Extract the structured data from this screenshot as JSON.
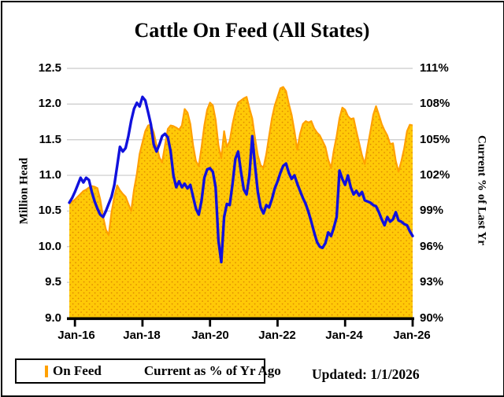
{
  "title": "Cattle On Feed (All States)",
  "updated_label": "Updated: 1/1/2026",
  "legend": {
    "on_feed_label": "On Feed",
    "pct_label": "Current as % of Yr Ago"
  },
  "colors": {
    "area_fill": "#FFC907",
    "area_dots": "#E08A00",
    "area_border": "#FFA000",
    "pct_line": "#1111DD",
    "gridline": "#C9C9C9",
    "axis": "#000000"
  },
  "chart_data": {
    "type": "area+line (dual axis, monthly)",
    "x_start": "2015-11",
    "x_end": "2026-01",
    "x_interval": "monthly",
    "x_tick_labels": [
      "Jan-16",
      "Jan-18",
      "Jan-20",
      "Jan-22",
      "Jan-24",
      "Jan-26"
    ],
    "x_tick_month_index": [
      2,
      26,
      50,
      74,
      98,
      122
    ],
    "left_axis": {
      "title": "Million Head",
      "min": 9.0,
      "max": 12.5,
      "ticks": [
        "12.5",
        "12.0",
        "11.5",
        "11.0",
        "10.5",
        "10.0",
        "9.5",
        "9.0"
      ]
    },
    "right_axis": {
      "title": "Current % of Last Yr",
      "min": 90,
      "max": 111,
      "ticks": [
        "111%",
        "108%",
        "105%",
        "102%",
        "99%",
        "96%",
        "93%",
        "90%"
      ]
    },
    "grid": "horizontal only",
    "legend_position": "bottom-left box",
    "series": [
      {
        "name": "On Feed",
        "axis": "left",
        "type": "area",
        "values": [
          10.6,
          10.63,
          10.66,
          10.7,
          10.74,
          10.78,
          10.8,
          10.83,
          10.85,
          10.84,
          10.82,
          10.66,
          10.42,
          10.24,
          10.16,
          10.48,
          10.7,
          10.86,
          10.79,
          10.74,
          10.7,
          10.6,
          10.5,
          10.8,
          11.02,
          11.3,
          11.46,
          11.62,
          11.7,
          11.71,
          11.6,
          11.42,
          11.25,
          11.18,
          11.42,
          11.65,
          11.7,
          11.69,
          11.67,
          11.64,
          11.7,
          11.93,
          11.88,
          11.72,
          11.42,
          11.2,
          11.13,
          11.4,
          11.7,
          11.92,
          12.02,
          11.98,
          11.78,
          11.42,
          11.24,
          11.62,
          11.4,
          11.48,
          11.72,
          11.9,
          12.02,
          12.05,
          12.08,
          12.1,
          11.94,
          11.8,
          11.52,
          11.28,
          11.14,
          11.11,
          11.3,
          11.55,
          11.8,
          11.98,
          12.1,
          12.22,
          12.24,
          12.18,
          12.0,
          11.85,
          11.62,
          11.36,
          11.58,
          11.72,
          11.76,
          11.74,
          11.76,
          11.66,
          11.6,
          11.56,
          11.48,
          11.4,
          11.22,
          11.1,
          11.35,
          11.55,
          11.8,
          11.95,
          11.92,
          11.83,
          11.79,
          11.8,
          11.62,
          11.45,
          11.28,
          11.16,
          11.4,
          11.62,
          11.85,
          11.97,
          11.85,
          11.72,
          11.63,
          11.56,
          11.44,
          11.45,
          11.2,
          11.05,
          11.2,
          11.38,
          11.62,
          11.71,
          11.7
        ]
      },
      {
        "name": "Current as % of Yr Ago",
        "axis": "right",
        "type": "line",
        "values": [
          99.7,
          100.1,
          100.6,
          101.2,
          101.8,
          101.4,
          101.8,
          101.6,
          100.6,
          99.8,
          99.2,
          98.7,
          98.5,
          99.0,
          99.6,
          100.2,
          101.2,
          102.8,
          104.4,
          104.0,
          104.3,
          105.3,
          106.6,
          107.6,
          108.1,
          107.8,
          108.6,
          108.3,
          107.3,
          106.3,
          104.6,
          104.0,
          104.6,
          105.3,
          105.5,
          105.2,
          104.0,
          102.0,
          101.0,
          101.5,
          101.0,
          101.3,
          100.9,
          101.2,
          100.2,
          99.2,
          98.7,
          99.9,
          101.8,
          102.5,
          102.6,
          102.3,
          101.0,
          96.5,
          94.7,
          98.5,
          99.6,
          99.5,
          101.3,
          103.4,
          104.0,
          102.3,
          100.8,
          100.4,
          102.0,
          105.3,
          102.8,
          100.6,
          99.3,
          98.8,
          99.5,
          99.3,
          100.0,
          100.9,
          101.5,
          102.2,
          102.8,
          103.0,
          102.2,
          101.7,
          102.0,
          101.3,
          100.7,
          100.1,
          99.6,
          98.9,
          98.1,
          97.2,
          96.4,
          96.0,
          95.9,
          96.3,
          97.2,
          96.9,
          97.6,
          98.5,
          102.4,
          101.7,
          101.2,
          102.0,
          101.0,
          100.4,
          100.7,
          100.3,
          100.6,
          99.9,
          99.8,
          99.7,
          99.5,
          99.4,
          98.9,
          98.3,
          97.8,
          98.5,
          98.1,
          98.3,
          98.9,
          98.2,
          98.1,
          97.9,
          97.8,
          97.3,
          96.9
        ]
      }
    ]
  }
}
